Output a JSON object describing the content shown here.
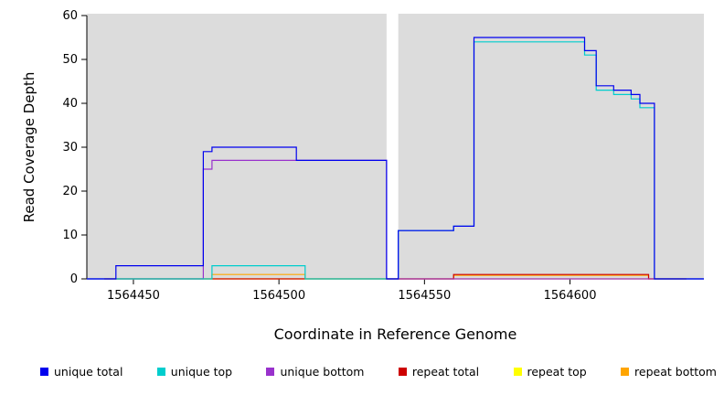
{
  "chart_data": {
    "type": "line",
    "style": "step",
    "title": "",
    "xlabel": "Coordinate in Reference Genome",
    "ylabel": "Read Coverage Depth",
    "xlim": [
      1564434,
      1564646
    ],
    "ylim": [
      0,
      60
    ],
    "x_ticks": [
      "1564450",
      "1564500",
      "1564550",
      "1564600"
    ],
    "x_tick_values": [
      1564450,
      1564500,
      1564550,
      1564600
    ],
    "y_ticks": [
      0,
      10,
      20,
      30,
      40,
      50,
      60
    ],
    "panel_color": "#DCDCDC",
    "gap_region": [
      1564537,
      1564541
    ],
    "grid": false,
    "legend_position": "bottom",
    "series": [
      {
        "name": "unique total",
        "color": "#0000EE",
        "points": [
          [
            1564434,
            0
          ],
          [
            1564444,
            3
          ],
          [
            1564474,
            29
          ],
          [
            1564477,
            30
          ],
          [
            1564506,
            27
          ],
          [
            1564537,
            0
          ],
          [
            1564541,
            11
          ],
          [
            1564560,
            12
          ],
          [
            1564567,
            55
          ],
          [
            1564605,
            52
          ],
          [
            1564609,
            44
          ],
          [
            1564615,
            43
          ],
          [
            1564621,
            42
          ],
          [
            1564624,
            40
          ],
          [
            1564629,
            0
          ],
          [
            1564646,
            0
          ]
        ]
      },
      {
        "name": "unique top",
        "color": "#00CDCD",
        "points": [
          [
            1564434,
            0
          ],
          [
            1564477,
            3
          ],
          [
            1564509,
            0
          ],
          [
            1564541,
            11
          ],
          [
            1564560,
            12
          ],
          [
            1564567,
            54
          ],
          [
            1564605,
            51
          ],
          [
            1564609,
            43
          ],
          [
            1564615,
            42
          ],
          [
            1564621,
            41
          ],
          [
            1564624,
            39
          ],
          [
            1564629,
            0
          ],
          [
            1564646,
            0
          ]
        ]
      },
      {
        "name": "unique bottom",
        "color": "#9932CC",
        "points": [
          [
            1564434,
            0
          ],
          [
            1564474,
            25
          ],
          [
            1564477,
            27
          ],
          [
            1564537,
            0
          ],
          [
            1564646,
            0
          ]
        ]
      },
      {
        "name": "repeat total",
        "color": "#CD0000",
        "points": [
          [
            1564440,
            0
          ],
          [
            1564560,
            1
          ],
          [
            1564627,
            0
          ],
          [
            1564640,
            0
          ]
        ]
      },
      {
        "name": "repeat top",
        "color": "#FFFF00",
        "points": [
          [
            1564440,
            0
          ],
          [
            1564640,
            0
          ]
        ]
      },
      {
        "name": "repeat bottom",
        "color": "#FFA500",
        "points": [
          [
            1564440,
            0
          ],
          [
            1564477,
            1
          ],
          [
            1564509,
            0
          ],
          [
            1564560,
            0.8
          ],
          [
            1564627,
            0
          ],
          [
            1564640,
            0
          ]
        ]
      }
    ]
  },
  "legend": {
    "items": [
      {
        "label": "unique total",
        "color": "#0000EE"
      },
      {
        "label": "unique top",
        "color": "#00CDCD"
      },
      {
        "label": "unique bottom",
        "color": "#9932CC"
      },
      {
        "label": "repeat total",
        "color": "#CD0000"
      },
      {
        "label": "repeat top",
        "color": "#FFFF00"
      },
      {
        "label": "repeat bottom",
        "color": "#FFA500"
      }
    ]
  }
}
